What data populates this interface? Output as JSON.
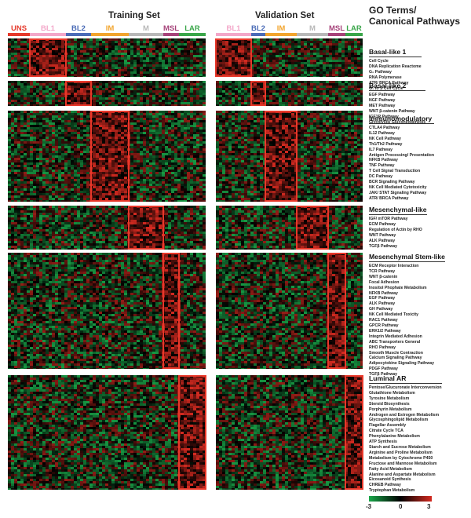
{
  "training_title": "Training Set",
  "validation_title": "Validation Set",
  "go_title": "GO Terms/\nCanonical Pathways",
  "subtypes": [
    {
      "label": "UNS",
      "color": "#e63a2c",
      "text_color": "#e63a2c",
      "solid": true
    },
    {
      "label": "BL1",
      "color": "#f3a7c9",
      "text_color": "#f3a7c9",
      "solid": false
    },
    {
      "label": "BL2",
      "color": "#4b6cb7",
      "text_color": "#4b6cb7",
      "solid": false
    },
    {
      "label": "IM",
      "color": "#f2a52e",
      "text_color": "#f2a52e",
      "solid": false
    },
    {
      "label": "M",
      "color": "#b8b8b8",
      "text_color": "#b8b8b8",
      "solid": false
    },
    {
      "label": "MSL",
      "color": "#a6437a",
      "text_color": "#a6437a",
      "solid": false
    },
    {
      "label": "LAR",
      "color": "#3aa64a",
      "text_color": "#3aa64a",
      "solid": false
    }
  ],
  "validation_subtypes": [
    {
      "label": "BL1",
      "color": "#f3a7c9"
    },
    {
      "label": "BL2",
      "color": "#4b6cb7"
    },
    {
      "label": "IM",
      "color": "#f2a52e"
    },
    {
      "label": "M",
      "color": "#b8b8b8"
    },
    {
      "label": "MSL",
      "color": "#a6437a"
    },
    {
      "label": "LAR",
      "color": "#3aa64a"
    }
  ],
  "groups": [
    {
      "title": "Basal-like 1",
      "items": [
        "Cell Cycle",
        "DNA Replication Reactome",
        "G₂ Pathway",
        "RNA Polymerase",
        "ATR/ BRCA Pathway",
        "G₁ to S Cell Cycle"
      ]
    },
    {
      "title": "Basal-like 2",
      "items": [
        "EGF Pathway",
        "NGF Pathway",
        "MET Pathway",
        "WNT β-catenin Pathway",
        "IGF1R Pathway",
        "Glycolysis/ Gluconeogenesis"
      ]
    },
    {
      "title": "Immunomodulatory",
      "items": [
        "CTLA4 Pathway",
        "IL12 Pathway",
        "NK Cell Pathway",
        "Th1/Th2 Pathway",
        "IL7 Pathway",
        "Antigen Processing/ Presentation",
        "NFKB Pathway",
        "TNF Pathway",
        "T Cell Signal Transduction",
        "DC Pathway",
        "BCR Signaling Pathway",
        "NK Cell Mediated Cytotoxicity",
        "JAK/ STAT Signaling Pathway",
        "ATR/ BRCA Pathway"
      ]
    },
    {
      "title": "Mesenchymal-like",
      "items": [
        "IGF/ mTOR Pathway",
        "ECM Pathway",
        "Regulation of Actin by RHO",
        "WNT Pathway",
        "ALK Pathway",
        "TGFβ Pathway"
      ]
    },
    {
      "title": "Mesenchymal Stem-like",
      "items": [
        "ECM Receptor Interaction",
        "TCR Pathway",
        "WNT β-catenin",
        "Focal Adhesion",
        "Inositol Phophate Metabolism",
        "NFKB Pathway",
        "EGF Pathway",
        "ALK Pathway",
        "GH Pathway",
        "NK Cell Mediated Toxicity",
        "RAC1 Pathway",
        "GPCR Pathway",
        "ERK1/2 Pathway",
        "Integrin Mediated Adhesion",
        "ABC Transporters General",
        "RHO Pathway",
        "Smooth Muscle Contraction",
        "Calcium Signaling Pathway",
        "Adipocytokine Signaling Pathway",
        "PDGF Pathway",
        "TGFβ Pathway"
      ]
    },
    {
      "title": "Luminal AR",
      "items": [
        "Pentose/Glucuronate Interconversion",
        "Glutathione Metabolism",
        "Tyrosine Metabolism",
        "Steroid Biosynthesis",
        "Porphyrin Metabolism",
        "Androgen and Estrogen Metabolism",
        "Glycosphingolipid Metabolism",
        "Flagellar Assembly",
        "Citrate Cycle TCA",
        "Phenylalanine Metabolism",
        "ATP Synthesis",
        "Starch and Sucrose Metabolism",
        "Arginine and Proline Metabolism",
        "Metabolism by Cytochrome P450",
        "Fructose and Mannose Metabolism",
        "Fatty Acid Metabolism",
        "Alanine and Aspartate Metabolism",
        "Eicosanoid Synthesis",
        "CHREB Pathway",
        "Tryptophan Metabolism"
      ]
    }
  ],
  "colorbar": {
    "min_label": "-3",
    "mid_label": "0",
    "max_label": "3",
    "low_color": "#1aa84a",
    "mid_color": "#000000",
    "high_color": "#d42a20",
    "highlight_color": "#e8382a"
  }
}
